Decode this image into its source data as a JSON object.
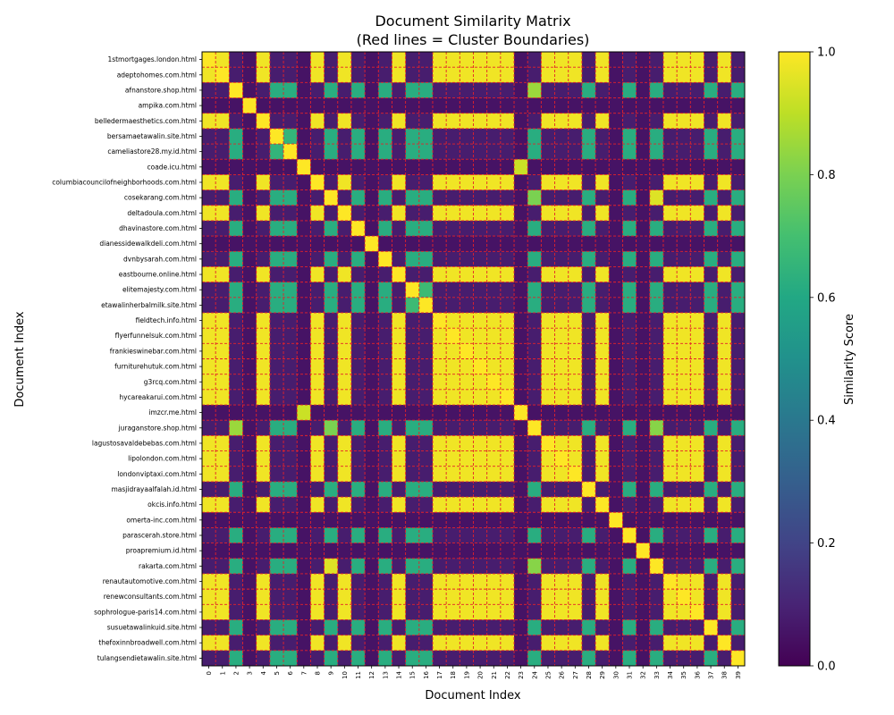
{
  "chart_data": {
    "type": "heatmap",
    "title": "Document Similarity Matrix",
    "subtitle": "(Red lines = Cluster Boundaries)",
    "xlabel": "Document Index",
    "ylabel": "Document Index",
    "colorbar": {
      "label": "Similarity Score",
      "range": [
        0.0,
        1.0
      ],
      "ticks": [
        "0.0",
        "0.2",
        "0.4",
        "0.6",
        "0.8",
        "1.0"
      ],
      "colormap": "viridis"
    },
    "x_tick_labels": [
      "0",
      "1",
      "2",
      "3",
      "4",
      "5",
      "6",
      "7",
      "8",
      "9",
      "10",
      "11",
      "12",
      "13",
      "14",
      "15",
      "16",
      "17",
      "18",
      "19",
      "20",
      "21",
      "22",
      "23",
      "24",
      "25",
      "26",
      "27",
      "28",
      "29",
      "30",
      "31",
      "32",
      "33",
      "34",
      "35",
      "36",
      "37",
      "38",
      "39"
    ],
    "y_tick_labels": [
      "1stmortgages.london.html",
      "adeptohomes.com.html",
      "afnanstore.shop.html",
      "ampika.com.html",
      "belledermaesthetics.com.html",
      "bersamaetawalin.site.html",
      "cameliastore28.my.id.html",
      "coade.icu.html",
      "columbiacouncilofneighborhoods.com.html",
      "cosekarang.com.html",
      "deltadoula.com.html",
      "dhavinastore.com.html",
      "dianessidewalkdeli.com.html",
      "dvnbysarah.com.html",
      "eastbourne.online.html",
      "elitemajesty.com.html",
      "etawalinherbalmilk.site.html",
      "fieldtech.info.html",
      "flyerfunnelsuk.com.html",
      "frankieswinebar.com.html",
      "furniturehutuk.com.html",
      "g3rcq.com.html",
      "hycareakarui.com.html",
      "imzcr.me.html",
      "juraganstore.shop.html",
      "lagustosavaldebebas.com.html",
      "lipolondon.com.html",
      "londonviptaxi.com.html",
      "masjidrayaalfalah.id.html",
      "okcis.info.html",
      "omerta-inc.com.html",
      "parascerah.store.html",
      "proapremium.id.html",
      "rakarta.com.html",
      "renautautomotive.com.html",
      "renewconsultants.com.html",
      "sophrologue-paris14.com.html",
      "susuetawalinkuid.site.html",
      "thefoxinnbroadwell.com.html",
      "tulangsendietawalin.site.html"
    ],
    "clusters": {
      "A": [
        0,
        1,
        4,
        8,
        10,
        14,
        17,
        18,
        19,
        20,
        21,
        22,
        25,
        26,
        27,
        29,
        34,
        35,
        36,
        38
      ],
      "B": [
        2,
        5,
        6,
        9,
        11,
        13,
        15,
        16,
        24,
        28,
        31,
        33,
        37,
        39
      ],
      "singletons": [
        3,
        7,
        12,
        23,
        30,
        32
      ],
      "linked_pairs": [
        [
          7,
          23
        ]
      ]
    },
    "similarity": {
      "diagonal": 1.0,
      "within_A": 0.98,
      "within_B": 0.62,
      "B_core_pairs": [
        [
          5,
          6,
          0.65
        ],
        [
          15,
          16,
          0.68
        ],
        [
          9,
          33,
          0.95
        ],
        [
          9,
          24,
          0.8
        ],
        [
          24,
          33,
          0.82
        ],
        [
          2,
          24,
          0.85
        ],
        [
          7,
          23,
          0.92
        ]
      ],
      "between_clusters": 0.08,
      "singleton_background": 0.05
    }
  }
}
